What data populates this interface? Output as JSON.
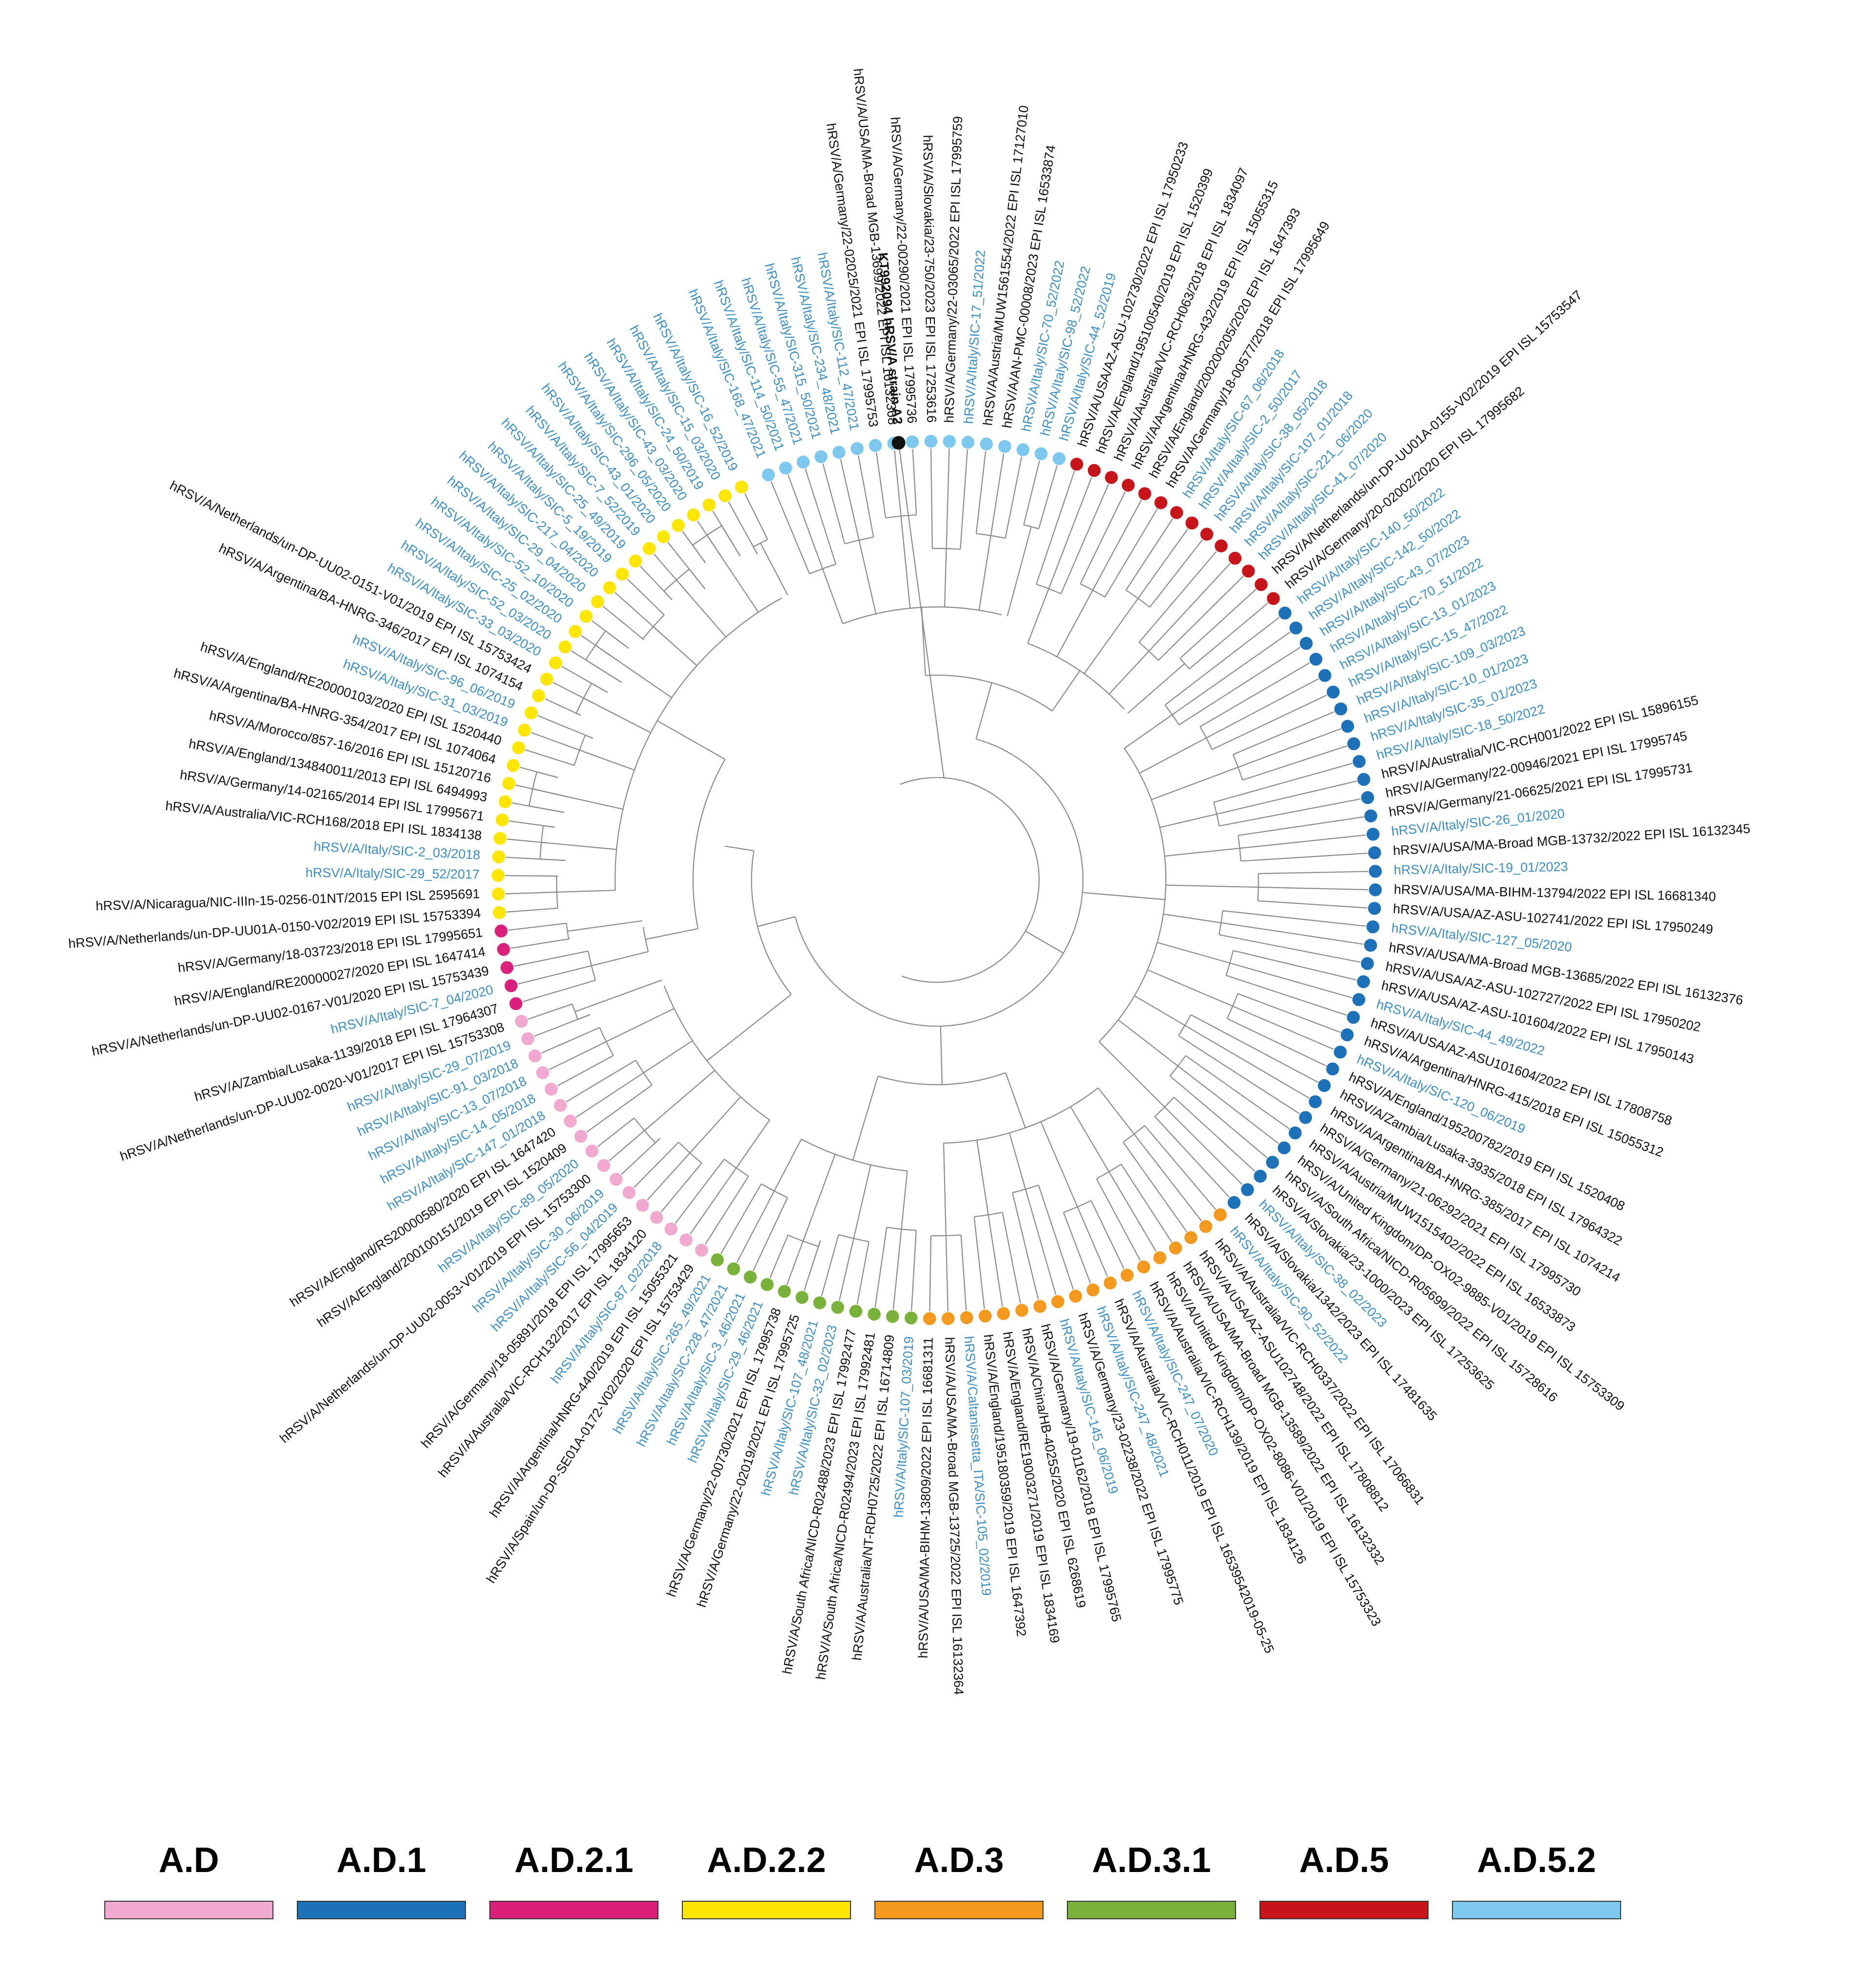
{
  "root": {
    "label": "KT992094 hRSV/A strain A2",
    "color": "#111111"
  },
  "clades": [
    {
      "id": "AD52",
      "name": "A.D.5.2",
      "color": "#7cc8ef",
      "leaves": [
        {
          "l": "hRSV/A/Italy/SIC-168_47/2021",
          "c": "b"
        },
        {
          "l": "hRSV/A/Italy/SIC-114_50/2021",
          "c": "b"
        },
        {
          "l": "hRSV/A/Italy/SIC-55_47/2021",
          "c": "b"
        },
        {
          "l": "hRSV/A/Italy/SIC-315_50/2021",
          "c": "b"
        },
        {
          "l": "hRSV/A/Italy/SIC-234_48/2021",
          "c": "b"
        },
        {
          "l": "hRSV/A/Italy/SIC-112_47/2021",
          "c": "b"
        },
        {
          "l": "hRSV/A/Germany/22-02025/2021 EPI ISL 17995753",
          "c": "k"
        },
        {
          "l": "hRSV/A/USA/MA-Broad MGB-13699/2022 EPI ISL 16132368",
          "c": "k"
        },
        {
          "l": "hRSV/A/Germany/22-00290/2021 EPI ISL 17995736",
          "c": "k"
        },
        {
          "l": "hRSV/A/Slovakia/23-750/2023 EPI ISL 17253616",
          "c": "k"
        },
        {
          "l": "hRSV/A/Germany/22-03065/2022 EPI ISL 17995759",
          "c": "k"
        },
        {
          "l": "hRSV/A/Italy/SIC-17_51/2022",
          "c": "b"
        },
        {
          "l": "hRSV/A/Austria/MUW1561554/2022 EPI ISL 17127010",
          "c": "k"
        },
        {
          "l": "hRSV/A/AN-PMC-00008/2023 EPI ISL 16533874",
          "c": "k"
        },
        {
          "l": "hRSV/A/Italy/SIC-70_52/2022",
          "c": "b"
        },
        {
          "l": "hRSV/A/Italy/SIC-98_52/2022",
          "c": "b"
        },
        {
          "l": "hRSV/A/Italy/SIC-44_52/2019",
          "c": "b"
        }
      ]
    },
    {
      "id": "AD5",
      "name": "A.D.5",
      "color": "#c8151b",
      "leaves": [
        {
          "l": "hRSV/A/USA/AZ-ASU-102730/2022 EPI ISL 17950233",
          "c": "k"
        },
        {
          "l": "hRSV/A/England/195100540/2019 EPI ISL 1520399",
          "c": "k"
        },
        {
          "l": "hRSV/A/Australia/VIC-RCH063/2018 EPI ISL 1834097",
          "c": "k"
        },
        {
          "l": "hRSV/A/Argentina/HNRG-432/2019 EPI ISL 15055315",
          "c": "k"
        },
        {
          "l": "hRSV/A/England/200200205/2020 EPI ISL 1647393",
          "c": "k"
        },
        {
          "l": "hRSV/A/Germany/18-00577/2018 EPI ISL 17995649",
          "c": "k"
        },
        {
          "l": "hRSV/A/Italy/SIC-67_06/2018",
          "c": "b"
        },
        {
          "l": "hRSV/A/Italy/SIC-2_50/2017",
          "c": "b"
        },
        {
          "l": "hRSV/A/Italy/SIC-38_05/2018",
          "c": "b"
        },
        {
          "l": "hRSV/A/Italy/SIC-107_01/2018",
          "c": "b"
        },
        {
          "l": "hRSV/A/Italy/SIC-221_06/2020",
          "c": "b"
        },
        {
          "l": "hRSV/A/Italy/SIC-41_07/2020",
          "c": "b"
        },
        {
          "l": "hRSV/A/Netherlands/un-DP-UU01A-0155-V02/2019 EPI ISL 15753547",
          "c": "k"
        },
        {
          "l": "hRSV/A/Germany/20-02002/2020 EPI ISL 17995682",
          "c": "k"
        }
      ]
    },
    {
      "id": "AD1",
      "name": "A.D.1",
      "color": "#1d71b8",
      "leaves": [
        {
          "l": "hRSV/A/Italy/SIC-140_50/2022",
          "c": "b"
        },
        {
          "l": "hRSV/A/Italy/SIC-142_50/2022",
          "c": "b"
        },
        {
          "l": "hRSV/A/Italy/SIC-43_07/2023",
          "c": "b"
        },
        {
          "l": "hRSV/A/Italy/SIC-70_51/2022",
          "c": "b"
        },
        {
          "l": "hRSV/A/Italy/SIC-13_01/2023",
          "c": "b"
        },
        {
          "l": "hRSV/A/Italy/SIC-15_47/2022",
          "c": "b"
        },
        {
          "l": "hRSV/A/Italy/SIC-109_03/2023",
          "c": "b"
        },
        {
          "l": "hRSV/A/Italy/SIC-10_01/2023",
          "c": "b"
        },
        {
          "l": "hRSV/A/Italy/SIC-35_01/2023",
          "c": "b"
        },
        {
          "l": "hRSV/A/Italy/SIC-18_50/2022",
          "c": "b"
        },
        {
          "l": "hRSV/A/Australia/VIC-RCH001/2022 EPI ISL 15896155",
          "c": "k"
        },
        {
          "l": "hRSV/A/Germany/22-00946/2021 EPI ISL 17995745",
          "c": "k"
        },
        {
          "l": "hRSV/A/Germany/21-06625/2021 EPI ISL 17995731",
          "c": "k"
        },
        {
          "l": "hRSV/A/Italy/SIC-26_01/2020",
          "c": "b"
        },
        {
          "l": "hRSV/A/USA/MA-Broad MGB-13732/2022 EPI ISL 16132345",
          "c": "k"
        },
        {
          "l": "hRSV/A/Italy/SIC-19_01/2023",
          "c": "b"
        },
        {
          "l": "hRSV/A/USA/MA-BIHM-13794/2022 EPI ISL 16681340",
          "c": "k"
        },
        {
          "l": "hRSV/A/USA/AZ-ASU-102741/2022 EPI ISL 17950249",
          "c": "k"
        },
        {
          "l": "hRSV/A/Italy/SIC-127_05/2020",
          "c": "b"
        },
        {
          "l": "hRSV/A/USA/MA-Broad MGB-13685/2022 EPI ISL 16132376",
          "c": "k"
        },
        {
          "l": "hRSV/A/USA/AZ-ASU-102727/2022 EPI ISL 17950202",
          "c": "k"
        },
        {
          "l": "hRSV/A/USA/AZ-ASU-101604/2022 EPI ISL 17950143",
          "c": "k"
        },
        {
          "l": "hRSV/A/Italy/SIC-44_49/2022",
          "c": "b"
        },
        {
          "l": "hRSV/A/USA/AZ-ASU101604/2022 EPI ISL 17808758",
          "c": "k"
        },
        {
          "l": "hRSV/A/Argentina/HNRG-415/2018 EPI ISL 15055312",
          "c": "k"
        },
        {
          "l": "hRSV/A/Italy/SIC-120_06/2019",
          "c": "b"
        },
        {
          "l": "hRSV/A/England/195200782/2019 EPI ISL 1520408",
          "c": "k"
        },
        {
          "l": "hRSV/A/Zambia/Lusaka-3935/2018 EPI ISL 17964322",
          "c": "k"
        },
        {
          "l": "hRSV/A/Argentina/BA-HNRG-385/2017 EPI ISL 1074214",
          "c": "k"
        },
        {
          "l": "hRSV/A/Germany/21-06292/2021 EPI ISL 17995730",
          "c": "k"
        },
        {
          "l": "hRSV/A/Austria/MUW1515402/2022 EPI ISL 16533873",
          "c": "k"
        },
        {
          "l": "hRSV/A/United Kingdom/DP-OX02-9885-V01/2019 EPI ISL 15753309",
          "c": "k"
        },
        {
          "l": "hRSV/A/South Africa/NICD-R05699/2022 EPI ISL 15728616",
          "c": "k"
        },
        {
          "l": "hRSV/A/Slovakia/23-1000/2023 EPI ISL 17253625",
          "c": "k"
        },
        {
          "l": "hRSV/A/Italy/SIC-38_02/2023",
          "c": "b"
        },
        {
          "l": "hRSV/A/Slovakia/1342/2023 EPI ISL 17481635",
          "c": "k"
        }
      ]
    },
    {
      "id": "AD3",
      "name": "A.D.3",
      "color": "#f39a1e",
      "leaves": [
        {
          "l": "hRSV/A/Italy/SIC-90_52/2022",
          "c": "b"
        },
        {
          "l": "hRSV/A/Australia/VIC-RCH0337/2022 EPI ISL 17066831",
          "c": "k"
        },
        {
          "l": "hRSV/A/USA/AZ-ASU102748/2022 EPI ISL 17808812",
          "c": "k"
        },
        {
          "l": "hRSV/A/USA/MA-Broad MGB-13589/2022 EPI ISL 16132332",
          "c": "k"
        },
        {
          "l": "hRSV/A/United Kingdom/DP-OX02-8086-V01/2019 EPI ISL 15753323",
          "c": "k"
        },
        {
          "l": "hRSV/A/Australia/VIC-RCH139/2019 EPI ISL 1834126",
          "c": "k"
        },
        {
          "l": "hRSV/A/Italy/SIC-247_07/2020",
          "c": "b"
        },
        {
          "l": "hRSV/A/Australia/VIC-RCH011/2019 EPI ISL 16539542019-05-25",
          "c": "k"
        },
        {
          "l": "hRSV/A/Italy/SIC-247_48/2021",
          "c": "b"
        },
        {
          "l": "hRSV/A/Germany/23-02238/2022 EPI ISL 17995775",
          "c": "k"
        },
        {
          "l": "hRSV/A/Italy/SIC-145_06/2019",
          "c": "b"
        },
        {
          "l": "hRSV/A/Germany/19-01162/2018 EPI ISL 17995765",
          "c": "k"
        },
        {
          "l": "hRSV/A/China/HB-4025S/2020 EPI ISL 6268619",
          "c": "k"
        },
        {
          "l": "hRSV/A/England/RE19003271/2019 EPI ISL 1834169",
          "c": "k"
        },
        {
          "l": "hRSV/A/England/195180359/2019 EPI ISL 1647392",
          "c": "k"
        },
        {
          "l": "hRSV/A/Caltanissetta_ITA/SIC-105_02/2019",
          "c": "b"
        },
        {
          "l": "hRSV/A/USA/MA-Broad MGB-13725/2022 EPI ISL 16132364",
          "c": "k"
        },
        {
          "l": "hRSV/A/USA/MA-BIHM-13809/2022 EPI ISL 16681311",
          "c": "k"
        }
      ]
    },
    {
      "id": "AD31",
      "name": "A.D.3.1",
      "color": "#7ab13a",
      "leaves": [
        {
          "l": "hRSV/A/Italy/SIC-107_03/2019",
          "c": "b"
        },
        {
          "l": "hRSV/A/Australia/NT-RDH0725/2022 EPI ISL 16714809",
          "c": "k"
        },
        {
          "l": "hRSV/A/South Africa/NICD-R02494/2023 EPI ISL 17992481",
          "c": "k"
        },
        {
          "l": "hRSV/A/South Africa/NICD-R02488/2023 EPI ISL 17992477",
          "c": "k"
        },
        {
          "l": "hRSV/A/Italy/SIC-32_02/2023",
          "c": "b"
        },
        {
          "l": "hRSV/A/Italy/SIC-107_48/2021",
          "c": "b"
        },
        {
          "l": "hRSV/A/Germany/22-02019/2021 EPI ISL 17995725",
          "c": "k"
        },
        {
          "l": "hRSV/A/Germany/22-00730/2021 EPI ISL 17995738",
          "c": "k"
        },
        {
          "l": "hRSV/A/Italy/SIC-29_46/2021",
          "c": "b"
        },
        {
          "l": "hRSV/A/Italy/SIC-3_46/2021",
          "c": "b"
        },
        {
          "l": "hRSV/A/Italy/SIC-228_47/2021",
          "c": "b"
        },
        {
          "l": "hRSV/A/Italy/SIC-265_49/2021",
          "c": "b"
        }
      ]
    },
    {
      "id": "AD",
      "name": "A.D",
      "color": "#f2a9cf",
      "leaves": [
        {
          "l": "hRSV/A/Spain/un-DP-SE01A-0172-V02/2020 EPI ISL 15753429",
          "c": "k"
        },
        {
          "l": "hRSV/A/Argentina/HNRG-440/2019 EPI ISL 15055321",
          "c": "k"
        },
        {
          "l": "hRSV/A/Italy/SIC-87_02/2018",
          "c": "b"
        },
        {
          "l": "hRSV/A/Australia/VIC-RCH132/2017 EPI ISL 1834120",
          "c": "k"
        },
        {
          "l": "hRSV/A/Germany/18-05891/2018 EPI ISL 17995653",
          "c": "k"
        },
        {
          "l": "hRSV/A/Italy/SIC-56_04/2019",
          "c": "b"
        },
        {
          "l": "hRSV/A/Italy/SIC-30_06/2019",
          "c": "b"
        },
        {
          "l": "hRSV/A/Netherlands/un-DP-UU02-0053-V01/2019 EPI ISL 15753300",
          "c": "k"
        },
        {
          "l": "hRSV/A/Italy/SIC-89_05/2020",
          "c": "b"
        },
        {
          "l": "hRSV/A/England/200100151/2019 EPI ISL 1520409",
          "c": "k"
        },
        {
          "l": "hRSV/A/England/RS20000580/2020 EPI ISL 1647420",
          "c": "k"
        },
        {
          "l": "hRSV/A/Italy/SIC-147_01/2018",
          "c": "b"
        },
        {
          "l": "hRSV/A/Italy/SIC-14_05/2018",
          "c": "b"
        },
        {
          "l": "hRSV/A/Italy/SIC-13_07/2018",
          "c": "b"
        },
        {
          "l": "hRSV/A/Italy/SIC-91_03/2018",
          "c": "b"
        },
        {
          "l": "hRSV/A/Italy/SIC-29_07/2019",
          "c": "b"
        },
        {
          "l": "hRSV/A/Netherlands/un-DP-UU02-0020-V01/2017 EPI ISL 15753308",
          "c": "k"
        }
      ]
    },
    {
      "id": "AD21",
      "name": "A.D.2.1",
      "color": "#d9207b",
      "leaves": [
        {
          "l": "hRSV/A/Zambia/Lusaka-1139/2018 EPI ISL 17964307",
          "c": "k"
        },
        {
          "l": "hRSV/A/Italy/SIC-7_04/2020",
          "c": "b"
        },
        {
          "l": "hRSV/A/Netherlands/un-DP-UU02-0167-V01/2020 EPI ISL 15753439",
          "c": "k"
        },
        {
          "l": "hRSV/A/England/RE20000027/2020 EPI ISL 1647414",
          "c": "k"
        },
        {
          "l": "hRSV/A/Germany/18-03723/2018 EPI ISL 17995651",
          "c": "k"
        }
      ]
    },
    {
      "id": "AD22",
      "name": "A.D.2.2",
      "color": "#ffe600",
      "leaves": [
        {
          "l": "hRSV/A/Netherlands/un-DP-UU01A-0150-V02/2019 EPI ISL 15753394",
          "c": "k"
        },
        {
          "l": "hRSV/A/Nicaragua/NIC-IIIn-15-0256-01NT/2015 EPI ISL 2595691",
          "c": "k"
        },
        {
          "l": "hRSV/A/Italy/SIC-29_52/2017",
          "c": "b"
        },
        {
          "l": "hRSV/A/Italy/SIC-2_03/2018",
          "c": "b"
        },
        {
          "l": "hRSV/A/Australia/VIC-RCH168/2018 EPI ISL 1834138",
          "c": "k"
        },
        {
          "l": "hRSV/A/Germany/14-02165/2014 EPI ISL 17995671",
          "c": "k"
        },
        {
          "l": "hRSV/A/England/134840011/2013 EPI ISL 6494993",
          "c": "k"
        },
        {
          "l": "hRSV/A/Morocco/857-16/2016 EPI ISL 15120716",
          "c": "k"
        },
        {
          "l": "hRSV/A/Argentina/BA-HNRG-354/2017 EPI ISL 1074064",
          "c": "k"
        },
        {
          "l": "hRSV/A/England/RE20000103/2020 EPI ISL 1520440",
          "c": "k"
        },
        {
          "l": "hRSV/A/Italy/SIC-31_03/2019",
          "c": "b"
        },
        {
          "l": "hRSV/A/Italy/SIC-96_06/2019",
          "c": "b"
        },
        {
          "l": "hRSV/A/Argentina/BA-HNRG-346/2017 EPI ISL 1074154",
          "c": "k"
        },
        {
          "l": "hRSV/A/Netherlands/un-DP-UU02-0151-V01/2019 EPI ISL 15753424",
          "c": "k"
        },
        {
          "l": "hRSV/A/Italy/SIC-33_03/2020",
          "c": "b"
        },
        {
          "l": "hRSV/A/Italy/SIC-52_03/2020",
          "c": "b"
        },
        {
          "l": "hRSV/A/Italy/SIC-25_02/2020",
          "c": "b"
        },
        {
          "l": "hRSV/A/Italy/SIC-52_10/2020",
          "c": "b"
        },
        {
          "l": "hRSV/A/Italy/SIC-29_04/2020",
          "c": "b"
        },
        {
          "l": "hRSV/A/Italy/SIC-217_04/2020",
          "c": "b"
        },
        {
          "l": "hRSV/A/Italy/SIC-5_19/2019",
          "c": "b"
        },
        {
          "l": "hRSV/A/Italy/SIC-25_49/2019",
          "c": "b"
        },
        {
          "l": "hRSV/A/Italy/SIC-7_52/2019",
          "c": "b"
        },
        {
          "l": "hRSV/A/Italy/SIC-43_01/2020",
          "c": "b"
        },
        {
          "l": "hRSV/A/Italy/SIC-296_05/2020",
          "c": "b"
        },
        {
          "l": "hRSV/A/Italy/SIC-43_03/2020",
          "c": "b"
        },
        {
          "l": "hRSV/A/Italy/SIC-24_50/2019",
          "c": "b"
        },
        {
          "l": "hRSV/A/Italy/SIC-15_03/2020",
          "c": "b"
        },
        {
          "l": "hRSV/A/Italy/SIC-16_52/2019",
          "c": "b"
        }
      ]
    }
  ],
  "legend": [
    {
      "name": "A.D",
      "color": "#f2a9cf"
    },
    {
      "name": "A.D.1",
      "color": "#1d71b8"
    },
    {
      "name": "A.D.2.1",
      "color": "#d9207b"
    },
    {
      "name": "A.D.2.2",
      "color": "#ffe600"
    },
    {
      "name": "A.D.3",
      "color": "#f39a1e"
    },
    {
      "name": "A.D.3.1",
      "color": "#7ab13a"
    },
    {
      "name": "A.D.5",
      "color": "#c8151b"
    },
    {
      "name": "A.D.5.2",
      "color": "#7cc8ef"
    }
  ],
  "label_colors": {
    "b": "#3b8fc9",
    "k": "#111111"
  }
}
